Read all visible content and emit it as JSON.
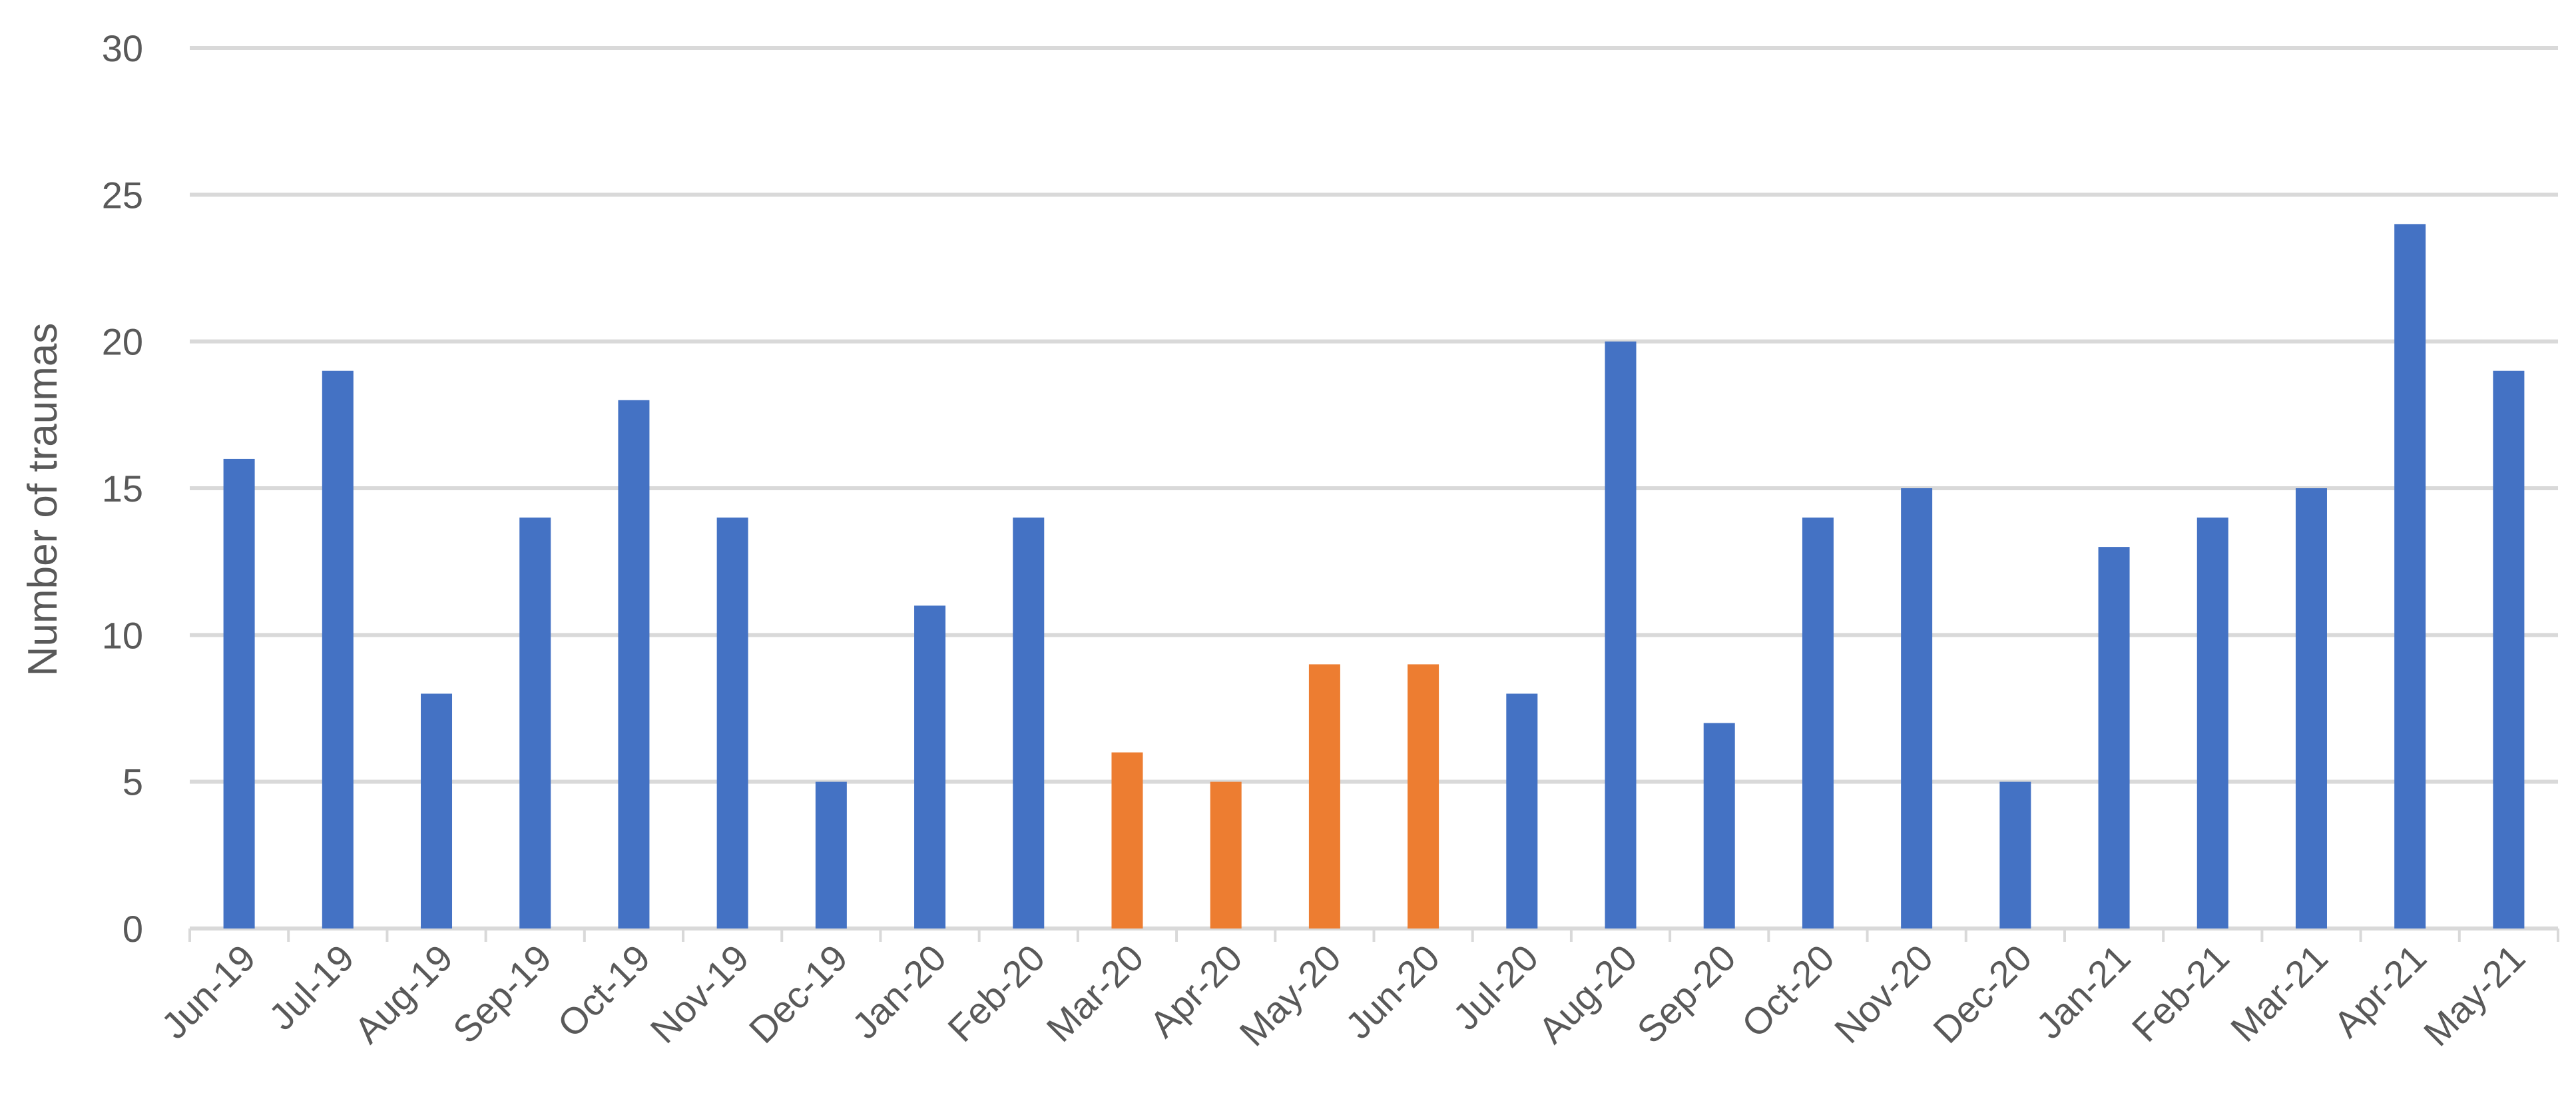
{
  "chart_data": {
    "type": "bar",
    "title": "",
    "xlabel": "",
    "ylabel": "Number of traumas",
    "ylim": [
      0,
      30
    ],
    "yticks": [
      0,
      5,
      10,
      15,
      20,
      25,
      30
    ],
    "grid": true,
    "legend": "none",
    "categories": [
      "Jun-19",
      "Jul-19",
      "Aug-19",
      "Sep-19",
      "Oct-19",
      "Nov-19",
      "Dec-19",
      "Jan-20",
      "Feb-20",
      "Mar-20",
      "Apr-20",
      "May-20",
      "Jun-20",
      "Jul-20",
      "Aug-20",
      "Sep-20",
      "Oct-20",
      "Nov-20",
      "Dec-20",
      "Jan-21",
      "Feb-21",
      "Mar-21",
      "Apr-21",
      "May-21"
    ],
    "values": [
      16,
      19,
      8,
      14,
      18,
      14,
      5,
      11,
      14,
      6,
      5,
      9,
      9,
      8,
      20,
      7,
      14,
      15,
      5,
      13,
      14,
      15,
      24,
      19
    ],
    "bar_colors": [
      "#4472c4",
      "#4472c4",
      "#4472c4",
      "#4472c4",
      "#4472c4",
      "#4472c4",
      "#4472c4",
      "#4472c4",
      "#4472c4",
      "#ed7d31",
      "#ed7d31",
      "#ed7d31",
      "#ed7d31",
      "#4472c4",
      "#4472c4",
      "#4472c4",
      "#4472c4",
      "#4472c4",
      "#4472c4",
      "#4472c4",
      "#4472c4",
      "#4472c4",
      "#4472c4",
      "#4472c4"
    ]
  }
}
